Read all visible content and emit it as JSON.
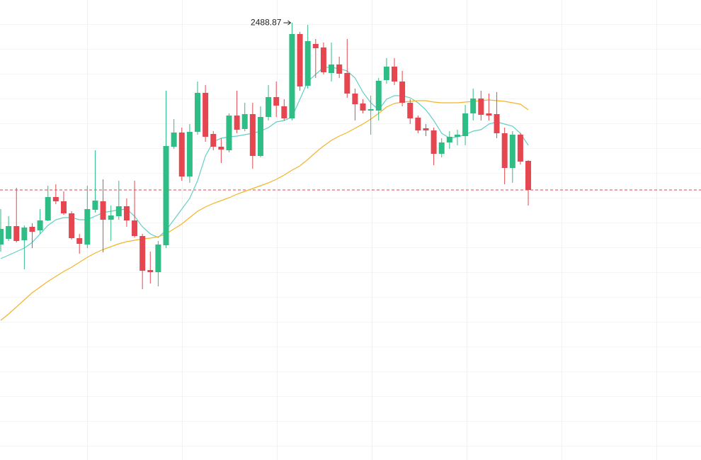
{
  "chart_data": {
    "type": "candlestick",
    "ylim": [
      1872,
      2521
    ],
    "up_color": "#2ebd85",
    "down_color": "#e5464f",
    "open": [
      2176,
      2184,
      2202,
      2182,
      2201,
      2196,
      2210,
      2243,
      2237,
      2220,
      2185,
      2176,
      2225,
      2237,
      2211,
      2216,
      2230,
      2210,
      2188,
      2140,
      2137,
      2175,
      2314,
      2334,
      2272,
      2335,
      2390,
      2332,
      2314,
      2309,
      2358,
      2339,
      2360,
      2301,
      2356,
      2384,
      2371,
      2354,
      2473,
      2400,
      2459,
      2454,
      2418,
      2430,
      2418,
      2389,
      2375,
      2365,
      2365,
      2408,
      2427,
      2406,
      2376,
      2355,
      2340,
      2337,
      2304,
      2320,
      2328,
      2329,
      2361,
      2382,
      2361,
      2360,
      2333,
      2284,
      2331,
      2294
    ],
    "high": [
      2226,
      2216,
      2256,
      2203,
      2206,
      2226,
      2259,
      2261,
      2251,
      2223,
      2191,
      2259,
      2309,
      2268,
      2231,
      2266,
      2241,
      2266,
      2191,
      2166,
      2181,
      2393,
      2353,
      2341,
      2346,
      2406,
      2401,
      2336,
      2326,
      2361,
      2393,
      2376,
      2376,
      2371,
      2401,
      2406,
      2381,
      2488.87,
      2476,
      2486,
      2466,
      2461,
      2461,
      2441,
      2466,
      2396,
      2381,
      2386,
      2411,
      2439,
      2439,
      2421,
      2381,
      2358,
      2346,
      2341,
      2326,
      2336,
      2338,
      2373,
      2396,
      2393,
      2389,
      2391,
      2341,
      2336,
      2333,
      2295
    ],
    "low": [
      2166,
      2181,
      2179,
      2141,
      2171,
      2191,
      2209,
      2233,
      2218,
      2183,
      2163,
      2171,
      2221,
      2165,
      2181,
      2211,
      2201,
      2186,
      2113,
      2121,
      2117,
      2171,
      2311,
      2266,
      2263,
      2331,
      2321,
      2309,
      2291,
      2306,
      2333,
      2336,
      2283,
      2299,
      2351,
      2356,
      2351,
      2351,
      2393,
      2396,
      2411,
      2416,
      2406,
      2411,
      2383,
      2351,
      2361,
      2331,
      2351,
      2403,
      2401,
      2371,
      2346,
      2333,
      2329,
      2288,
      2299,
      2311,
      2316,
      2316,
      2351,
      2351,
      2351,
      2326,
      2261,
      2263,
      2289,
      2231
    ],
    "close": [
      2198,
      2202,
      2181,
      2200,
      2194,
      2210,
      2243,
      2237,
      2220,
      2185,
      2177,
      2226,
      2238,
      2211,
      2217,
      2230,
      2210,
      2188,
      2139,
      2137,
      2176,
      2315,
      2334,
      2272,
      2335,
      2390,
      2328,
      2314,
      2310,
      2358,
      2338,
      2360,
      2301,
      2356,
      2384,
      2372,
      2354,
      2473,
      2399,
      2463,
      2453,
      2419,
      2430,
      2417,
      2389,
      2374,
      2365,
      2367,
      2407,
      2427,
      2406,
      2376,
      2354,
      2337,
      2337,
      2304,
      2320,
      2328,
      2331,
      2361,
      2382,
      2359,
      2358,
      2333,
      2284,
      2331,
      2293,
      2253
    ],
    "lines": [
      {
        "color": "#63cfc4",
        "values": [
          2156,
          2161,
          2166,
          2171,
          2179,
          2191,
          2203,
          2211,
          2214,
          2214,
          2211,
          2211,
          2216,
          2221,
          2223,
          2225,
          2226,
          2216,
          2201,
          2191,
          2186,
          2196,
          2211,
          2226,
          2241,
          2266,
          2301,
          2321,
          2326,
          2328,
          2329,
          2331,
          2333,
          2336,
          2341,
          2349,
          2351,
          2356,
          2381,
          2406,
          2416,
          2426,
          2426,
          2424,
          2421,
          2411,
          2391,
          2376,
          2366,
          2381,
          2386,
          2386,
          2383,
          2376,
          2366,
          2351,
          2333,
          2326,
          2328,
          2331,
          2336,
          2338,
          2346,
          2349,
          2346,
          2343,
          2333,
          2316
        ]
      },
      {
        "color": "#f2b52b",
        "values": [
          2069,
          2078,
          2088,
          2098,
          2108,
          2116,
          2124,
          2131,
          2138,
          2144,
          2151,
          2158,
          2164,
          2169,
          2173,
          2177,
          2180,
          2182,
          2184,
          2185,
          2187,
          2191,
          2198,
          2205,
          2214,
          2223,
          2229,
          2234,
          2238,
          2242,
          2247,
          2251,
          2255,
          2259,
          2263,
          2268,
          2274,
          2281,
          2287,
          2296,
          2306,
          2315,
          2323,
          2329,
          2334,
          2340,
          2346,
          2353,
          2361,
          2370,
          2375,
          2377,
          2378,
          2379,
          2379,
          2377,
          2376,
          2376,
          2376,
          2377,
          2378,
          2379,
          2380,
          2379,
          2378,
          2376,
          2374,
          2366
        ]
      }
    ],
    "high_label": "2488.87",
    "last_price_line": true
  }
}
